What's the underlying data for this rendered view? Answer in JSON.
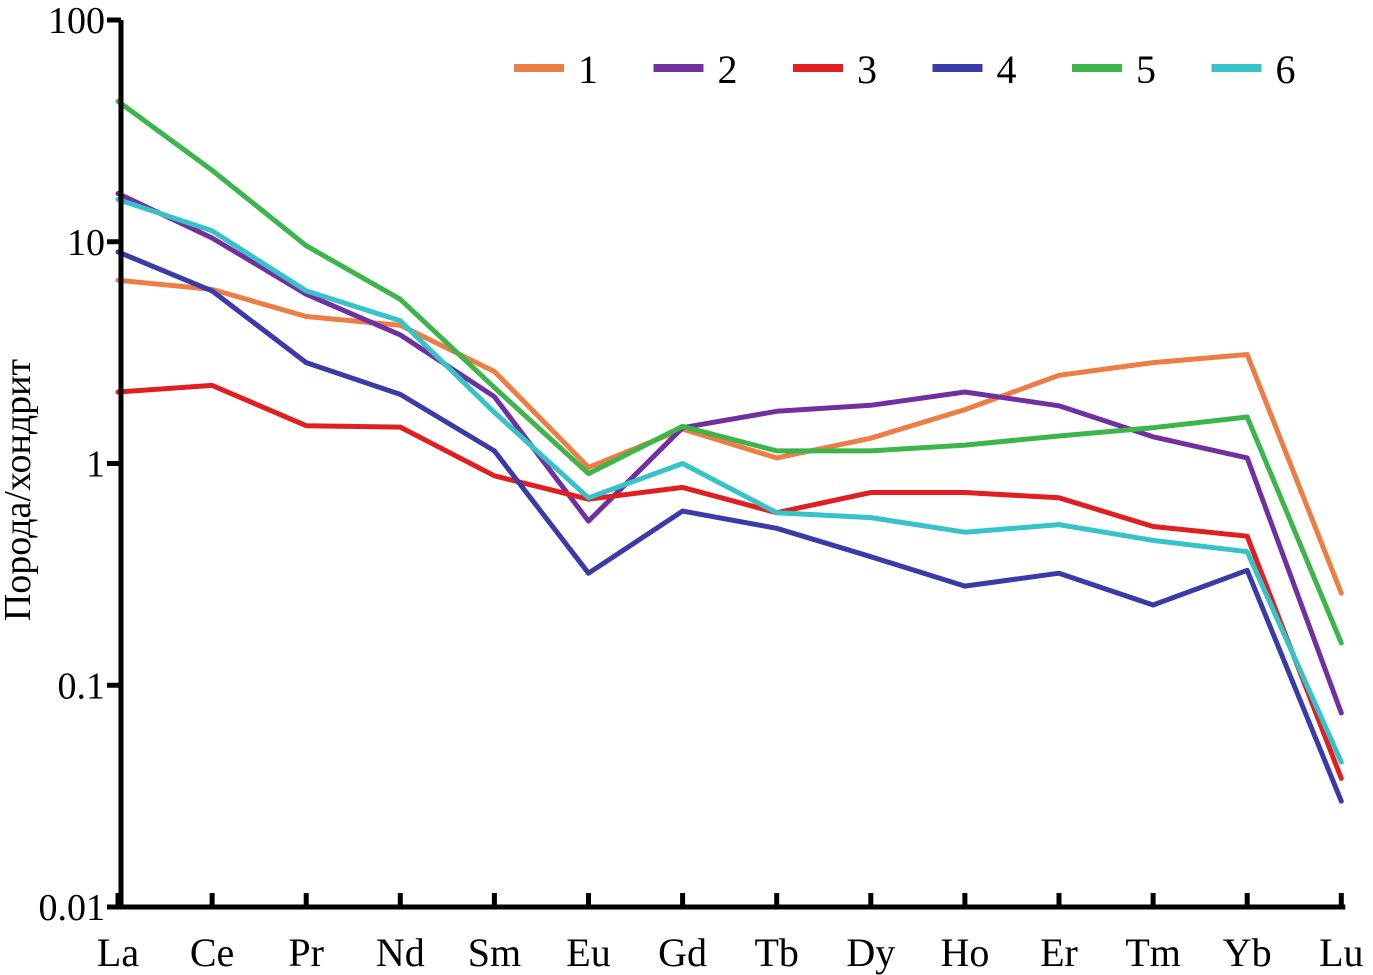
{
  "chart_data": {
    "type": "line",
    "title": "",
    "xlabel": "",
    "ylabel": "Порода/хондрит",
    "yscale": "log",
    "ylim": [
      0.01,
      100
    ],
    "yticks": [
      {
        "value": 0.01,
        "label": "0.01"
      },
      {
        "value": 0.1,
        "label": "0.1"
      },
      {
        "value": 1,
        "label": "1"
      },
      {
        "value": 10,
        "label": "10"
      },
      {
        "value": 100,
        "label": "100"
      }
    ],
    "grid": false,
    "legend_position": "top-right",
    "categories": [
      "La",
      "Ce",
      "Pr",
      "Nd",
      "Sm",
      "Eu",
      "Gd",
      "Tb",
      "Dy",
      "Ho",
      "Er",
      "Tm",
      "Yb",
      "Lu"
    ],
    "series": [
      {
        "name": "1",
        "color": "#ec7d45",
        "values": [
          6.7,
          6.1,
          4.6,
          4.2,
          2.6,
          0.96,
          1.43,
          1.06,
          1.3,
          1.75,
          2.5,
          2.85,
          3.1,
          0.26
        ]
      },
      {
        "name": "2",
        "color": "#7030a0",
        "values": [
          16.5,
          10.4,
          5.8,
          3.8,
          2.0,
          0.55,
          1.45,
          1.72,
          1.83,
          2.1,
          1.82,
          1.32,
          1.06,
          0.075
        ]
      },
      {
        "name": "3",
        "color": "#e02020",
        "values": [
          2.1,
          2.25,
          1.48,
          1.46,
          0.88,
          0.69,
          0.78,
          0.6,
          0.74,
          0.74,
          0.7,
          0.52,
          0.47,
          0.038
        ]
      },
      {
        "name": "4",
        "color": "#3a3aa8",
        "values": [
          9.0,
          6.0,
          2.85,
          2.05,
          1.14,
          0.32,
          0.61,
          0.51,
          0.38,
          0.28,
          0.32,
          0.23,
          0.33,
          0.03
        ]
      },
      {
        "name": "5",
        "color": "#3cb54a",
        "values": [
          43.0,
          21.0,
          9.6,
          5.5,
          2.2,
          0.9,
          1.47,
          1.14,
          1.14,
          1.21,
          1.33,
          1.45,
          1.62,
          0.155
        ]
      },
      {
        "name": "6",
        "color": "#35c2c8",
        "values": [
          15.5,
          11.2,
          6.0,
          4.4,
          1.7,
          0.7,
          1.0,
          0.6,
          0.57,
          0.49,
          0.53,
          0.45,
          0.4,
          0.045
        ]
      }
    ]
  }
}
